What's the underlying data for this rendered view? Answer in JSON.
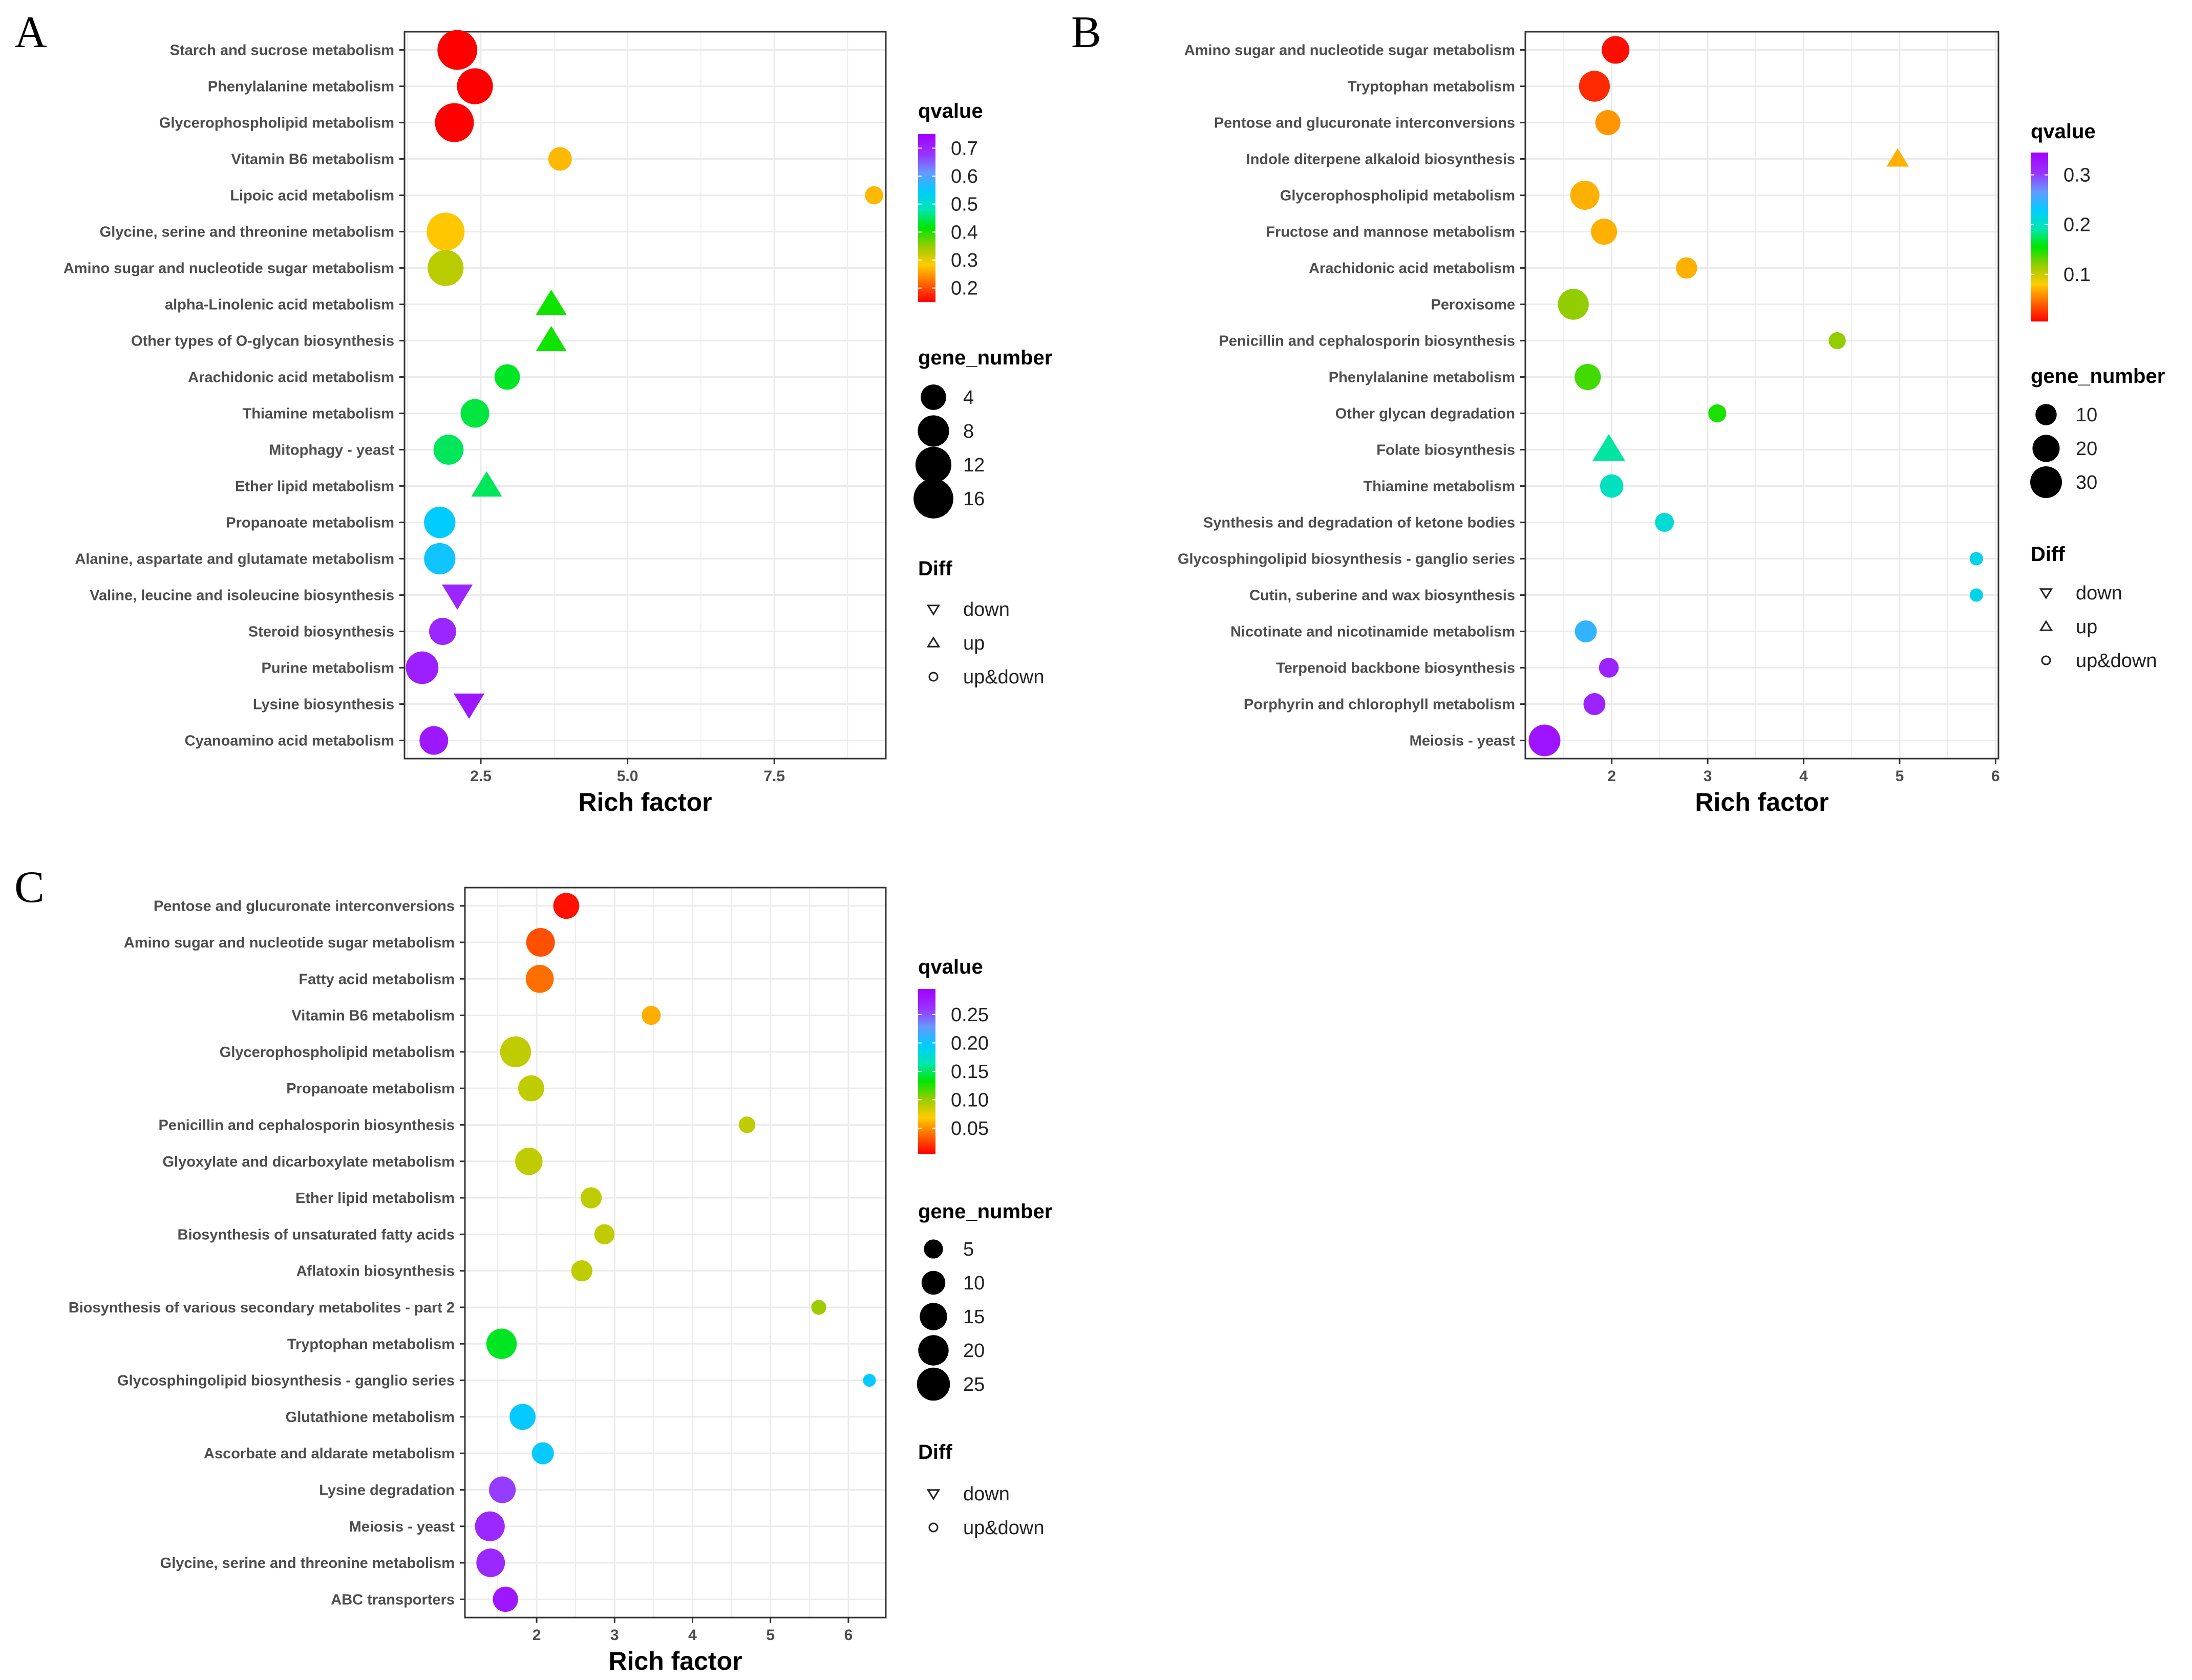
{
  "chart_data": [
    {
      "type": "scatter",
      "panel": "A",
      "xlabel": "Rich factor",
      "xlim": [
        1.2,
        9.4
      ],
      "xticks": [
        2.5,
        5.0,
        7.5
      ],
      "xtick_labels": [
        "2.5",
        "5.0",
        "7.5"
      ],
      "categories": [
        "Starch and sucrose metabolism",
        "Phenylalanine metabolism",
        "Glycerophospholipid metabolism",
        "Vitamin B6 metabolism",
        "Lipoic acid metabolism",
        "Glycine, serine and threonine metabolism",
        "Amino sugar and nucleotide sugar metabolism",
        "alpha-Linolenic acid metabolism",
        "Other types of O-glycan biosynthesis",
        "Arachidonic acid metabolism",
        "Thiamine metabolism",
        "Mitophagy - yeast",
        "Ether lipid metabolism",
        "Propanoate metabolism",
        "Alanine, aspartate and glutamate metabolism",
        "Valine, leucine and isoleucine biosynthesis",
        "Steroid biosynthesis",
        "Purine metabolism",
        "Lysine biosynthesis",
        "Cyanoamino acid metabolism"
      ],
      "rich_factor": [
        2.1,
        2.4,
        2.05,
        3.85,
        9.2,
        1.9,
        1.9,
        3.7,
        3.7,
        2.95,
        2.4,
        1.95,
        2.6,
        1.8,
        1.8,
        2.1,
        1.85,
        1.5,
        2.3,
        1.7
      ],
      "qvalue": [
        0.14,
        0.15,
        0.14,
        0.27,
        0.27,
        0.28,
        0.33,
        0.41,
        0.41,
        0.43,
        0.44,
        0.45,
        0.45,
        0.55,
        0.56,
        0.7,
        0.7,
        0.71,
        0.72,
        0.72
      ],
      "gene_number": [
        16,
        12,
        15,
        3,
        1,
        14,
        12,
        3,
        3,
        4,
        6,
        7,
        3,
        8,
        8,
        3,
        5,
        9,
        3,
        6
      ],
      "diff": [
        "up&down",
        "up&down",
        "up&down",
        "up&down",
        "up&down",
        "up&down",
        "up&down",
        "up",
        "up",
        "up&down",
        "up&down",
        "up&down",
        "up",
        "up&down",
        "up&down",
        "down",
        "up&down",
        "up&down",
        "down",
        "up&down"
      ],
      "color_legend": {
        "title": "qvalue",
        "min": 0.15,
        "max": 0.75,
        "ticks": [
          0.7,
          0.6,
          0.5,
          0.4,
          0.3,
          0.2
        ],
        "tick_labels": [
          "0.7",
          "0.6",
          "0.5",
          "0.4",
          "0.3",
          "0.2"
        ]
      },
      "size_legend": {
        "title": "gene_number",
        "values": [
          4,
          8,
          12,
          16
        ],
        "labels": [
          "4",
          "8",
          "12",
          "16"
        ]
      },
      "shape_legend": {
        "title": "Diff",
        "items": [
          "down",
          "up",
          "up&down"
        ]
      }
    },
    {
      "type": "scatter",
      "panel": "B",
      "xlabel": "Rich factor",
      "xlim": [
        1.1,
        6.03
      ],
      "xticks": [
        2,
        3,
        4,
        5,
        6
      ],
      "xtick_labels": [
        "2",
        "3",
        "4",
        "5",
        "6"
      ],
      "categories": [
        "Amino sugar and nucleotide sugar metabolism",
        "Tryptophan metabolism",
        "Pentose and glucuronate interconversions",
        "Indole diterpene alkaloid biosynthesis",
        "Glycerophospholipid metabolism",
        "Fructose and mannose metabolism",
        "Arachidonic acid metabolism",
        "Peroxisome",
        "Penicillin and cephalosporin biosynthesis",
        "Phenylalanine metabolism",
        "Other glycan degradation",
        "Folate biosynthesis",
        "Thiamine metabolism",
        "Synthesis and degradation of ketone bodies",
        "Glycosphingolipid biosynthesis - ganglio series",
        "Cutin, suberine and wax biosynthesis",
        "Nicotinate and nicotinamide metabolism",
        "Terpenoid backbone biosynthesis",
        "Porphyrin and chlorophyll metabolism",
        "Meiosis - yeast"
      ],
      "rich_factor": [
        2.04,
        1.82,
        1.96,
        4.98,
        1.72,
        1.92,
        2.78,
        1.6,
        4.35,
        1.75,
        3.1,
        1.97,
        2.0,
        2.55,
        5.8,
        5.8,
        1.73,
        1.97,
        1.82,
        1.3
      ],
      "qvalue": [
        0.01,
        0.02,
        0.06,
        0.07,
        0.07,
        0.07,
        0.07,
        0.12,
        0.12,
        0.14,
        0.15,
        0.19,
        0.2,
        0.21,
        0.22,
        0.22,
        0.25,
        0.32,
        0.32,
        0.33
      ],
      "gene_number": [
        21,
        28,
        16,
        5,
        24,
        18,
        10,
        28,
        5,
        18,
        6,
        16,
        13,
        7,
        2,
        2,
        11,
        8,
        11,
        30
      ],
      "diff": [
        "up&down",
        "up&down",
        "up&down",
        "up",
        "up&down",
        "up&down",
        "up&down",
        "up&down",
        "up&down",
        "up&down",
        "up&down",
        "up",
        "up&down",
        "up&down",
        "up&down",
        "up&down",
        "up&down",
        "up&down",
        "up&down",
        "up&down"
      ],
      "color_legend": {
        "title": "qvalue",
        "min": 0.005,
        "max": 0.345,
        "ticks": [
          0.3,
          0.2,
          0.1
        ],
        "tick_labels": [
          "0.3",
          "0.2",
          "0.1"
        ]
      },
      "size_legend": {
        "title": "gene_number",
        "values": [
          10,
          20,
          30
        ],
        "labels": [
          "10",
          "20",
          "30"
        ]
      },
      "shape_legend": {
        "title": "Diff",
        "items": [
          "down",
          "up",
          "up&down"
        ]
      }
    },
    {
      "type": "scatter",
      "panel": "C",
      "xlabel": "Rich factor",
      "xlim": [
        1.08,
        6.48
      ],
      "xticks": [
        2,
        3,
        4,
        5,
        6
      ],
      "xtick_labels": [
        "2",
        "3",
        "4",
        "5",
        "6"
      ],
      "categories": [
        "Pentose and glucuronate interconversions",
        "Amino sugar and nucleotide sugar metabolism",
        "Fatty acid metabolism",
        "Vitamin B6 metabolism",
        "Glycerophospholipid metabolism",
        "Propanoate metabolism",
        "Penicillin and cephalosporin biosynthesis",
        "Glyoxylate and dicarboxylate metabolism",
        "Ether lipid metabolism",
        "Biosynthesis of unsaturated fatty acids",
        "Aflatoxin biosynthesis",
        "Biosynthesis of various secondary metabolites - part 2",
        "Tryptophan metabolism",
        "Glycosphingolipid biosynthesis - ganglio series",
        "Glutathione metabolism",
        "Ascorbate and aldarate metabolism",
        "Lysine degradation",
        "Meiosis - yeast",
        "Glycine, serine and threonine metabolism",
        "ABC transporters"
      ],
      "rich_factor": [
        2.38,
        2.05,
        2.04,
        3.47,
        1.73,
        1.93,
        4.7,
        1.9,
        2.7,
        2.87,
        2.58,
        5.62,
        1.55,
        6.27,
        1.82,
        2.08,
        1.56,
        1.4,
        1.41,
        1.6
      ],
      "qvalue": [
        0.01,
        0.03,
        0.04,
        0.06,
        0.09,
        0.09,
        0.09,
        0.09,
        0.09,
        0.09,
        0.09,
        0.1,
        0.14,
        0.2,
        0.2,
        0.2,
        0.26,
        0.27,
        0.27,
        0.28
      ],
      "gene_number": [
        13,
        17,
        16,
        5,
        21,
        13,
        3,
        15,
        7,
        6,
        7,
        2,
        20,
        1,
        13,
        8,
        14,
        19,
        17,
        12
      ],
      "diff": [
        "up&down",
        "up&down",
        "up&down",
        "up&down",
        "up&down",
        "up&down",
        "up&down",
        "up&down",
        "up&down",
        "up&down",
        "up&down",
        "up&down",
        "up&down",
        "up&down",
        "up&down",
        "up&down",
        "up&down",
        "up&down",
        "up&down",
        "up&down"
      ],
      "color_legend": {
        "title": "qvalue",
        "min": 0.005,
        "max": 0.295,
        "ticks": [
          0.25,
          0.2,
          0.15,
          0.1,
          0.05
        ],
        "tick_labels": [
          "0.25",
          "0.20",
          "0.15",
          "0.10",
          "0.05"
        ]
      },
      "size_legend": {
        "title": "gene_number",
        "values": [
          5,
          10,
          15,
          20,
          25
        ],
        "labels": [
          "5",
          "10",
          "15",
          "20",
          "25"
        ]
      },
      "shape_legend": {
        "title": "Diff",
        "items": [
          "down",
          "up&down"
        ]
      }
    }
  ],
  "colors": {
    "panel_background": "#ffffff",
    "grid": "#ebebeb",
    "axis_text": "#4d4d4d",
    "axis_title": "#000000",
    "gradient_stops": [
      "#ff0000",
      "#ff6600",
      "#ffcc00",
      "#99cc00",
      "#00e600",
      "#00e6b3",
      "#00ccff",
      "#6699ff",
      "#9933ff",
      "#a100ff"
    ]
  }
}
